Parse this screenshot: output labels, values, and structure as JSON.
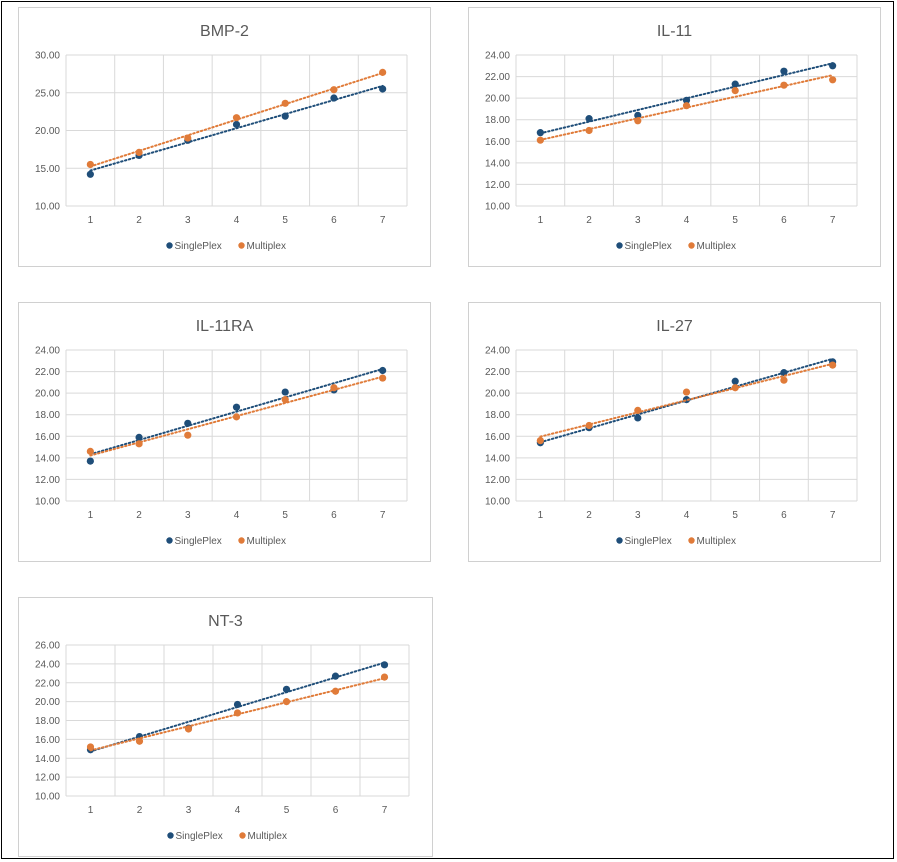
{
  "colors": {
    "singleplex": "#1f4e79",
    "multiplex": "#e07b39",
    "grid": "#d9d9d9",
    "axis_text": "#595959"
  },
  "chart_data": [
    {
      "type": "scatter",
      "title": "BMP-2",
      "x": [
        1,
        2,
        3,
        4,
        5,
        6,
        7
      ],
      "ylim": [
        10,
        30
      ],
      "yticks": [
        "10.00",
        "15.00",
        "20.00",
        "25.00",
        "30.00"
      ],
      "xticks": [
        "1",
        "2",
        "3",
        "4",
        "5",
        "6",
        "7"
      ],
      "grid": true,
      "trendline": "linear",
      "legend": "bottom",
      "series": [
        {
          "name": "SinglePlex",
          "values": [
            14.2,
            16.7,
            18.7,
            20.8,
            21.9,
            24.3,
            25.5
          ]
        },
        {
          "name": "Multiplex",
          "values": [
            15.5,
            17.1,
            19.0,
            21.7,
            23.6,
            25.4,
            27.7
          ]
        }
      ]
    },
    {
      "type": "scatter",
      "title": "IL-11",
      "x": [
        1,
        2,
        3,
        4,
        5,
        6,
        7
      ],
      "ylim": [
        10,
        24
      ],
      "yticks": [
        "10.00",
        "12.00",
        "14.00",
        "16.00",
        "18.00",
        "20.00",
        "22.00",
        "24.00"
      ],
      "xticks": [
        "1",
        "2",
        "3",
        "4",
        "5",
        "6",
        "7"
      ],
      "grid": true,
      "trendline": "linear",
      "legend": "bottom",
      "series": [
        {
          "name": "SinglePlex",
          "values": [
            16.8,
            18.1,
            18.4,
            19.8,
            21.3,
            22.5,
            23.0
          ]
        },
        {
          "name": "Multiplex",
          "values": [
            16.1,
            17.0,
            17.9,
            19.3,
            20.7,
            21.2,
            21.7
          ]
        }
      ]
    },
    {
      "type": "scatter",
      "title": "IL-11RA",
      "x": [
        1,
        2,
        3,
        4,
        5,
        6,
        7
      ],
      "ylim": [
        10,
        24
      ],
      "yticks": [
        "10.00",
        "12.00",
        "14.00",
        "16.00",
        "18.00",
        "20.00",
        "22.00",
        "24.00"
      ],
      "xticks": [
        "1",
        "2",
        "3",
        "4",
        "5",
        "6",
        "7"
      ],
      "grid": true,
      "trendline": "linear",
      "legend": "bottom",
      "series": [
        {
          "name": "SinglePlex",
          "values": [
            13.7,
            15.9,
            17.2,
            18.7,
            20.1,
            20.3,
            22.1
          ]
        },
        {
          "name": "Multiplex",
          "values": [
            14.6,
            15.3,
            16.1,
            17.8,
            19.4,
            20.5,
            21.4
          ]
        }
      ]
    },
    {
      "type": "scatter",
      "title": "IL-27",
      "x": [
        1,
        2,
        3,
        4,
        5,
        6,
        7
      ],
      "ylim": [
        10,
        24
      ],
      "yticks": [
        "10.00",
        "12.00",
        "14.00",
        "16.00",
        "18.00",
        "20.00",
        "22.00",
        "24.00"
      ],
      "xticks": [
        "1",
        "2",
        "3",
        "4",
        "5",
        "6",
        "7"
      ],
      "grid": true,
      "trendline": "linear",
      "legend": "bottom",
      "series": [
        {
          "name": "SinglePlex",
          "values": [
            15.4,
            16.8,
            17.7,
            19.4,
            21.1,
            21.9,
            22.9
          ]
        },
        {
          "name": "Multiplex",
          "values": [
            15.6,
            17.0,
            18.4,
            20.1,
            20.5,
            21.2,
            22.6
          ]
        }
      ]
    },
    {
      "type": "scatter",
      "title": "NT-3",
      "x": [
        1,
        2,
        3,
        4,
        5,
        6,
        7
      ],
      "ylim": [
        10,
        26
      ],
      "yticks": [
        "10.00",
        "12.00",
        "14.00",
        "16.00",
        "18.00",
        "20.00",
        "22.00",
        "24.00",
        "26.00"
      ],
      "xticks": [
        "1",
        "2",
        "3",
        "4",
        "5",
        "6",
        "7"
      ],
      "grid": true,
      "trendline": "linear",
      "legend": "bottom",
      "series": [
        {
          "name": "SinglePlex",
          "values": [
            14.9,
            16.3,
            17.2,
            19.7,
            21.3,
            22.7,
            23.9
          ]
        },
        {
          "name": "Multiplex",
          "values": [
            15.2,
            15.8,
            17.1,
            18.8,
            20.0,
            21.1,
            22.6
          ]
        }
      ]
    }
  ]
}
